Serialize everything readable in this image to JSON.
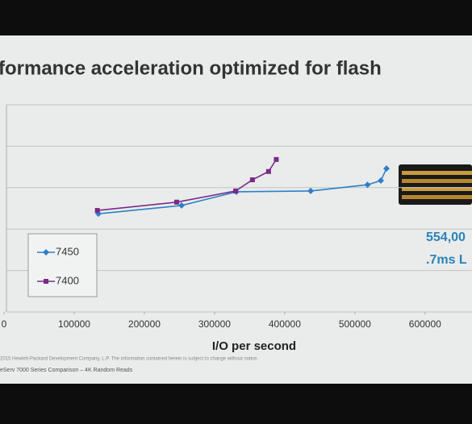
{
  "chart_data": {
    "type": "line",
    "title": "formance acceleration optimized for flash",
    "xlabel": "I/O per second",
    "xlim": [
      0,
      660000
    ],
    "xticks": [
      0,
      100000,
      200000,
      300000,
      400000,
      500000,
      600000
    ],
    "ylim": [
      0,
      5
    ],
    "grid": true,
    "legend": "left",
    "series": [
      {
        "name": "7450",
        "color": "#2f7fc7",
        "marker": "diamond",
        "x": [
          134500,
          253000,
          331000,
          437000,
          518000,
          537000,
          545000
        ],
        "values": [
          2.37,
          2.57,
          2.9,
          2.92,
          3.07,
          3.17,
          3.46
        ]
      },
      {
        "name": "7400",
        "color": "#7a2a8a",
        "marker": "square",
        "x": [
          133000,
          246000,
          330000,
          354000,
          377000,
          388000
        ],
        "values": [
          2.45,
          2.65,
          2.92,
          3.19,
          3.39,
          3.68
        ]
      }
    ],
    "annotations": [
      "554,00",
      ".7ms L"
    ],
    "footnotes": [
      "2015 Hewlett-Packard Development Company, L.P. The information contained herein is subject to change without notice.",
      "eServ 7000 Series Comparison – 4K Random Reads"
    ]
  }
}
